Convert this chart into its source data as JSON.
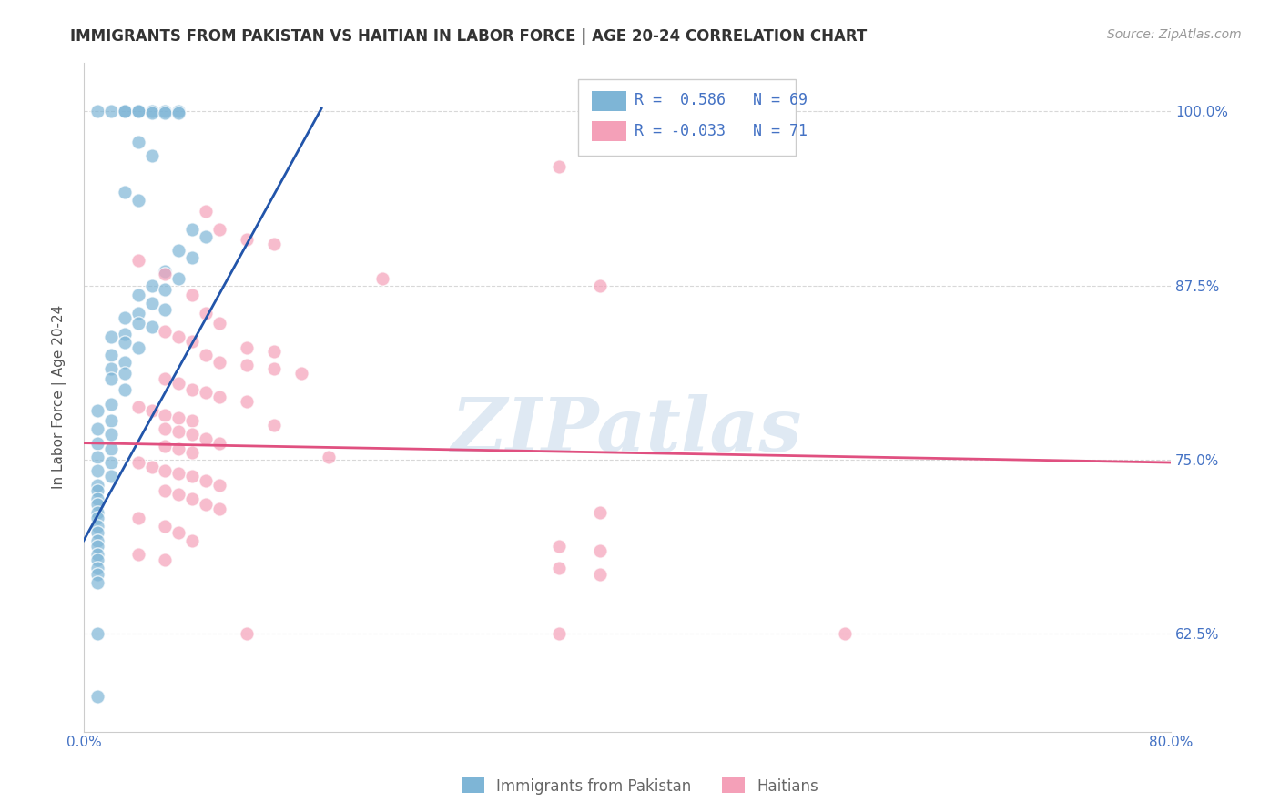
{
  "title": "IMMIGRANTS FROM PAKISTAN VS HAITIAN IN LABOR FORCE | AGE 20-24 CORRELATION CHART",
  "source": "Source: ZipAtlas.com",
  "ylabel": "In Labor Force | Age 20-24",
  "xlim": [
    0.0,
    0.08
  ],
  "ylim": [
    0.555,
    1.035
  ],
  "yticks": [
    0.625,
    0.75,
    0.875,
    1.0
  ],
  "ytick_labels": [
    "62.5%",
    "75.0%",
    "87.5%",
    "100.0%"
  ],
  "xticks": [
    0.0,
    0.01,
    0.02,
    0.03,
    0.04,
    0.05,
    0.06,
    0.07,
    0.08
  ],
  "xtick_labels_show": [
    "0.0%",
    "",
    "",
    "",
    "",
    "",
    "",
    "",
    "80.0%"
  ],
  "watermark": "ZIPatlas",
  "pakistan_color": "#7eb5d6",
  "haitian_color": "#f4a0b8",
  "pakistan_line_color": "#2255aa",
  "haitian_line_color": "#e05080",
  "background_color": "#ffffff",
  "grid_color": "#d8d8d8",
  "title_color": "#333333",
  "axis_label_color": "#555555",
  "tick_color": "#4472c4",
  "pakistan_points": [
    [
      0.001,
      1.0
    ],
    [
      0.002,
      1.0
    ],
    [
      0.003,
      1.0
    ],
    [
      0.003,
      1.0
    ],
    [
      0.004,
      1.0
    ],
    [
      0.005,
      1.0
    ],
    [
      0.006,
      1.0
    ],
    [
      0.007,
      1.0
    ],
    [
      0.004,
      1.0
    ],
    [
      0.005,
      0.999
    ],
    [
      0.006,
      0.999
    ],
    [
      0.007,
      0.999
    ],
    [
      0.004,
      0.978
    ],
    [
      0.005,
      0.968
    ],
    [
      0.003,
      0.942
    ],
    [
      0.004,
      0.936
    ],
    [
      0.008,
      0.915
    ],
    [
      0.009,
      0.91
    ],
    [
      0.007,
      0.9
    ],
    [
      0.008,
      0.895
    ],
    [
      0.006,
      0.885
    ],
    [
      0.007,
      0.88
    ],
    [
      0.005,
      0.875
    ],
    [
      0.006,
      0.872
    ],
    [
      0.004,
      0.868
    ],
    [
      0.005,
      0.862
    ],
    [
      0.006,
      0.858
    ],
    [
      0.004,
      0.855
    ],
    [
      0.003,
      0.852
    ],
    [
      0.004,
      0.848
    ],
    [
      0.005,
      0.845
    ],
    [
      0.003,
      0.84
    ],
    [
      0.002,
      0.838
    ],
    [
      0.003,
      0.834
    ],
    [
      0.004,
      0.83
    ],
    [
      0.002,
      0.825
    ],
    [
      0.003,
      0.82
    ],
    [
      0.002,
      0.815
    ],
    [
      0.003,
      0.812
    ],
    [
      0.002,
      0.808
    ],
    [
      0.003,
      0.8
    ],
    [
      0.002,
      0.79
    ],
    [
      0.001,
      0.785
    ],
    [
      0.002,
      0.778
    ],
    [
      0.001,
      0.772
    ],
    [
      0.002,
      0.768
    ],
    [
      0.001,
      0.762
    ],
    [
      0.002,
      0.758
    ],
    [
      0.001,
      0.752
    ],
    [
      0.002,
      0.748
    ],
    [
      0.001,
      0.742
    ],
    [
      0.002,
      0.738
    ],
    [
      0.001,
      0.732
    ],
    [
      0.001,
      0.728
    ],
    [
      0.001,
      0.722
    ],
    [
      0.001,
      0.718
    ],
    [
      0.001,
      0.712
    ],
    [
      0.001,
      0.708
    ],
    [
      0.001,
      0.702
    ],
    [
      0.001,
      0.698
    ],
    [
      0.001,
      0.692
    ],
    [
      0.001,
      0.688
    ],
    [
      0.001,
      0.682
    ],
    [
      0.001,
      0.678
    ],
    [
      0.001,
      0.672
    ],
    [
      0.001,
      0.668
    ],
    [
      0.001,
      0.662
    ],
    [
      0.001,
      0.625
    ],
    [
      0.001,
      0.58
    ]
  ],
  "haitian_points": [
    [
      0.035,
      0.96
    ],
    [
      0.009,
      0.928
    ],
    [
      0.01,
      0.915
    ],
    [
      0.012,
      0.908
    ],
    [
      0.014,
      0.905
    ],
    [
      0.004,
      0.893
    ],
    [
      0.006,
      0.883
    ],
    [
      0.022,
      0.88
    ],
    [
      0.038,
      0.875
    ],
    [
      0.008,
      0.868
    ],
    [
      0.009,
      0.855
    ],
    [
      0.01,
      0.848
    ],
    [
      0.006,
      0.842
    ],
    [
      0.007,
      0.838
    ],
    [
      0.008,
      0.835
    ],
    [
      0.012,
      0.83
    ],
    [
      0.014,
      0.828
    ],
    [
      0.009,
      0.825
    ],
    [
      0.01,
      0.82
    ],
    [
      0.012,
      0.818
    ],
    [
      0.014,
      0.815
    ],
    [
      0.016,
      0.812
    ],
    [
      0.006,
      0.808
    ],
    [
      0.007,
      0.805
    ],
    [
      0.008,
      0.8
    ],
    [
      0.009,
      0.798
    ],
    [
      0.01,
      0.795
    ],
    [
      0.012,
      0.792
    ],
    [
      0.004,
      0.788
    ],
    [
      0.005,
      0.785
    ],
    [
      0.006,
      0.782
    ],
    [
      0.007,
      0.78
    ],
    [
      0.008,
      0.778
    ],
    [
      0.014,
      0.775
    ],
    [
      0.006,
      0.772
    ],
    [
      0.007,
      0.77
    ],
    [
      0.008,
      0.768
    ],
    [
      0.009,
      0.765
    ],
    [
      0.01,
      0.762
    ],
    [
      0.006,
      0.76
    ],
    [
      0.007,
      0.758
    ],
    [
      0.008,
      0.755
    ],
    [
      0.018,
      0.752
    ],
    [
      0.004,
      0.748
    ],
    [
      0.005,
      0.745
    ],
    [
      0.006,
      0.742
    ],
    [
      0.007,
      0.74
    ],
    [
      0.008,
      0.738
    ],
    [
      0.009,
      0.735
    ],
    [
      0.01,
      0.732
    ],
    [
      0.006,
      0.728
    ],
    [
      0.007,
      0.725
    ],
    [
      0.008,
      0.722
    ],
    [
      0.009,
      0.718
    ],
    [
      0.01,
      0.715
    ],
    [
      0.038,
      0.712
    ],
    [
      0.004,
      0.708
    ],
    [
      0.006,
      0.702
    ],
    [
      0.007,
      0.698
    ],
    [
      0.008,
      0.692
    ],
    [
      0.035,
      0.688
    ],
    [
      0.038,
      0.685
    ],
    [
      0.004,
      0.682
    ],
    [
      0.006,
      0.678
    ],
    [
      0.035,
      0.672
    ],
    [
      0.038,
      0.668
    ],
    [
      0.012,
      0.625
    ],
    [
      0.035,
      0.625
    ],
    [
      0.056,
      0.625
    ]
  ],
  "pakistan_line": [
    [
      0.0,
      0.692
    ],
    [
      0.0175,
      1.002
    ]
  ],
  "haitian_line": [
    [
      0.0,
      0.762
    ],
    [
      0.08,
      0.748
    ]
  ]
}
